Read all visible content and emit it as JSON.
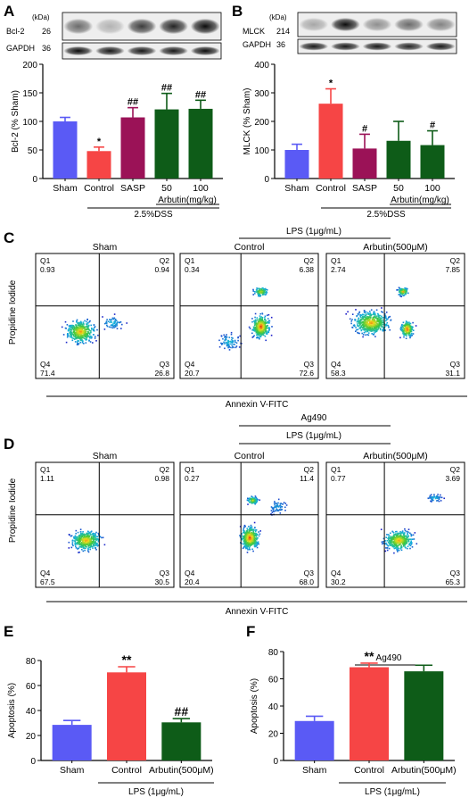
{
  "colors": {
    "sham": "#5a5af5",
    "control": "#f64545",
    "sasp": "#9b1257",
    "arbutin": "#0e5c18",
    "ink": "#000000"
  },
  "icons": [
    "western-blot-band"
  ],
  "panel_A": {
    "letter": "A",
    "blot": {
      "kda_label": "(kDa)",
      "rows": [
        {
          "label": "Bcl-2",
          "kda": "26",
          "intensity": [
            0.55,
            0.25,
            0.75,
            0.85,
            0.95
          ]
        },
        {
          "label": "GAPDH",
          "kda": "36",
          "intensity": [
            0.95,
            0.9,
            0.9,
            0.9,
            0.95
          ]
        }
      ]
    },
    "group_bracket": "2.5%DSS",
    "dose_bracket": "Arbutin(mg/kg)"
  },
  "panel_B": {
    "letter": "B",
    "blot": {
      "kda_label": "(kDa)",
      "rows": [
        {
          "label": "MLCK",
          "kda": "214",
          "intensity": [
            0.3,
            0.95,
            0.4,
            0.55,
            0.45
          ]
        },
        {
          "label": "GAPDH",
          "kda": "36",
          "intensity": [
            0.9,
            0.9,
            0.9,
            0.85,
            0.9
          ]
        }
      ]
    },
    "group_bracket": "2.5%DSS",
    "dose_bracket": "Arbutin(mg/kg)"
  },
  "panel_C": {
    "letter": "C",
    "treatment_bracket": "LPS (1μg/mL)",
    "y_axis_title": "Propidine Iodide",
    "x_axis_title": "Annexin V-FITC",
    "plots": [
      {
        "title": "Sham",
        "q1": "0.93",
        "q2": "0.94",
        "q3": "26.8",
        "q4": "71.4"
      },
      {
        "title": "Control",
        "q1": "0.34",
        "q2": "6.38",
        "q3": "72.6",
        "q4": "20.7"
      },
      {
        "title": "Arbutin(500μM)",
        "q1": "2.74",
        "q2": "7.85",
        "q3": "31.1",
        "q4": "58.3"
      }
    ]
  },
  "panel_D": {
    "letter": "D",
    "inhibitor_bracket": "Ag490",
    "treatment_bracket": "LPS (1μg/mL)",
    "y_axis_title": "Propidine Iodide",
    "x_axis_title": "Annexin V-FITC",
    "plots": [
      {
        "title": "Sham",
        "q1": "1.11",
        "q2": "0.98",
        "q3": "30.5",
        "q4": "67.5"
      },
      {
        "title": "Control",
        "q1": "0.27",
        "q2": "11.4",
        "q3": "68.0",
        "q4": "20.4"
      },
      {
        "title": "Arbutin(500μM)",
        "q1": "0.77",
        "q2": "3.69",
        "q3": "65.3",
        "q4": "30.2"
      }
    ]
  },
  "panel_E": {
    "letter": "E",
    "treatment_bracket": "LPS (1μg/mL)"
  },
  "panel_F": {
    "letter": "F",
    "inhibitor_bracket": "Ag490",
    "treatment_bracket": "LPS (1μg/mL)"
  },
  "chart_data": [
    {
      "id": "A",
      "type": "bar",
      "categories": [
        "Sham",
        "Control",
        "SASP",
        "50",
        "100"
      ],
      "values": [
        100,
        48,
        107,
        121,
        122
      ],
      "errors": [
        7,
        7,
        17,
        28,
        15
      ],
      "significance": [
        "",
        "*",
        "##",
        "##",
        "##"
      ],
      "colors": [
        "#5a5af5",
        "#f64545",
        "#9b1257",
        "#0e5c18",
        "#0e5c18"
      ],
      "ylabel": "Bcl-2 (% Sham)",
      "ylim": [
        0,
        200
      ],
      "yticks": [
        "0",
        "50",
        "100",
        "150",
        "200"
      ]
    },
    {
      "id": "B",
      "type": "bar",
      "categories": [
        "Sham",
        "Control",
        "SASP",
        "50",
        "100"
      ],
      "values": [
        100,
        262,
        105,
        132,
        117
      ],
      "errors": [
        20,
        52,
        50,
        68,
        50
      ],
      "significance": [
        "",
        "*",
        "#",
        "",
        "#"
      ],
      "colors": [
        "#5a5af5",
        "#f64545",
        "#9b1257",
        "#0e5c18",
        "#0e5c18"
      ],
      "ylabel": "MLCK (% Sham)",
      "ylim": [
        0,
        400
      ],
      "yticks": [
        "0",
        "100",
        "200",
        "300",
        "400"
      ]
    },
    {
      "id": "E",
      "type": "bar",
      "categories": [
        "Sham",
        "Control",
        "Arbutin(500μM)"
      ],
      "values": [
        28.5,
        70.5,
        30.5
      ],
      "errors": [
        3.5,
        4.5,
        3.0
      ],
      "significance": [
        "",
        "**",
        "##"
      ],
      "colors": [
        "#5a5af5",
        "#f64545",
        "#0e5c18"
      ],
      "ylabel": "Apoptosis (%)",
      "ylim": [
        0,
        80
      ],
      "yticks": [
        "0",
        "20",
        "40",
        "60",
        "80"
      ]
    },
    {
      "id": "F",
      "type": "bar",
      "categories": [
        "Sham",
        "Control",
        "Arbutin(500μM)"
      ],
      "values": [
        29.0,
        68.5,
        65.5
      ],
      "errors": [
        3.5,
        3.0,
        4.5
      ],
      "significance": [
        "",
        "**",
        ""
      ],
      "colors": [
        "#5a5af5",
        "#f64545",
        "#0e5c18"
      ],
      "ylabel": "Apoptosis (%)",
      "ylim": [
        0,
        80
      ],
      "yticks": [
        "0",
        "20",
        "40",
        "60",
        "80"
      ]
    }
  ]
}
